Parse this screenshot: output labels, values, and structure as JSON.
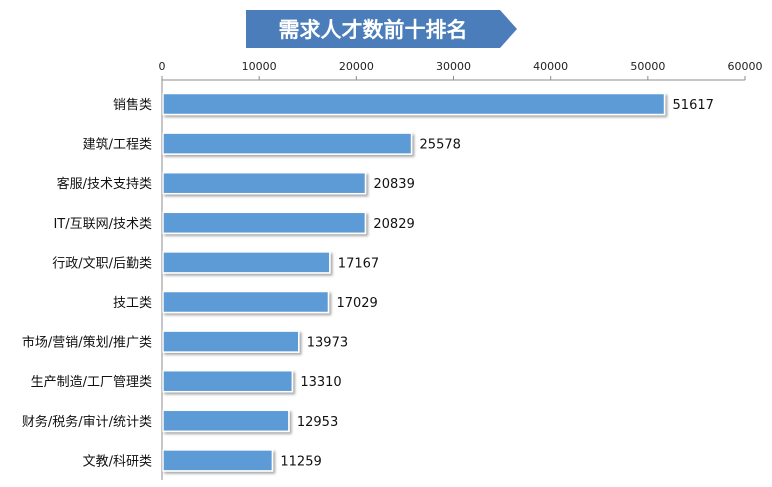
{
  "chart_data": {
    "type": "bar",
    "orientation": "horizontal",
    "title": "需求人才数前十排名",
    "xlabel": "",
    "ylabel": "",
    "xlim": [
      0,
      60000
    ],
    "ticks": [
      0,
      10000,
      20000,
      30000,
      40000,
      50000,
      60000
    ],
    "axis_position": "top",
    "grid": false,
    "categories": [
      "销售类",
      "建筑/工程类",
      "客服/技术支持类",
      "IT/互联网/技术类",
      "行政/文职/后勤类",
      "技工类",
      "市场/营销/策划/推广类",
      "生产制造/工厂管理类",
      "财务/税务/审计/统计类",
      "文教/科研类"
    ],
    "values": [
      51617,
      25578,
      20839,
      20829,
      17167,
      17029,
      13973,
      13310,
      12953,
      11259
    ],
    "colors": {
      "bar": "#5B9BD5",
      "bar_border": "#ffffff",
      "title_bg": "#4A7DBA",
      "axis": "#8c8c8c"
    }
  }
}
